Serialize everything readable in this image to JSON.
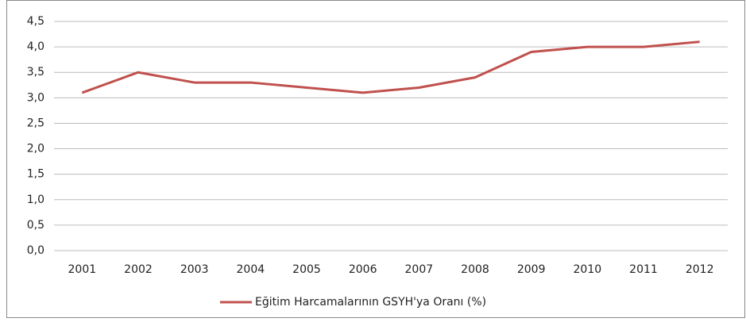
{
  "chart_data": {
    "type": "line",
    "categories": [
      "2001",
      "2002",
      "2003",
      "2004",
      "2005",
      "2006",
      "2007",
      "2008",
      "2009",
      "2010",
      "2011",
      "2012"
    ],
    "series": [
      {
        "name": "Eğitim Harcamalarının GSYH'ya Oranı (%)",
        "color": "#c0504d",
        "values": [
          3.1,
          3.5,
          3.3,
          3.3,
          3.2,
          3.1,
          3.2,
          3.4,
          3.9,
          4.0,
          4.0,
          4.1
        ]
      }
    ],
    "ylim": [
      0,
      4.5
    ],
    "yticks": [
      {
        "value": 0,
        "label": "0,0"
      },
      {
        "value": 0.5,
        "label": "0,5"
      },
      {
        "value": 1,
        "label": "1,0"
      },
      {
        "value": 1.5,
        "label": "1,5"
      },
      {
        "value": 2,
        "label": "2,0"
      },
      {
        "value": 2.5,
        "label": "2,5"
      },
      {
        "value": 3,
        "label": "3,0"
      },
      {
        "value": 3.5,
        "label": "3,5"
      },
      {
        "value": 4,
        "label": "4,0"
      },
      {
        "value": 4.5,
        "label": "4,5"
      }
    ],
    "grid": true,
    "legend": "bottom"
  }
}
